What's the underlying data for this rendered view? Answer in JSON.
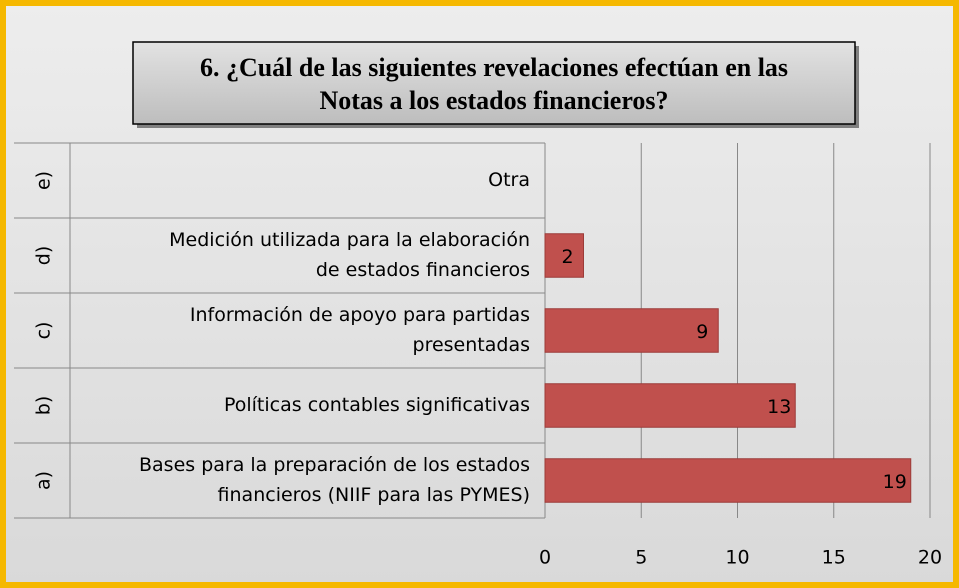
{
  "chart_data": {
    "type": "barh",
    "title": [
      "6. ¿Cuál de las siguientes revelaciones efectúan en las",
      "Notas a los estados financieros?"
    ],
    "group_labels": [
      "a)",
      "b)",
      "c)",
      "d)",
      "e)"
    ],
    "categories": [
      [
        "Bases para la preparación de los estados",
        "financieros (NIIF para las PYMES)"
      ],
      [
        "Políticas contables significativas"
      ],
      [
        "Información de apoyo para partidas",
        "presentadas"
      ],
      [
        "Medición utilizada para la elaboración",
        "de estados financieros"
      ],
      [
        "Otra"
      ]
    ],
    "values": [
      19,
      13,
      9,
      2,
      null
    ],
    "color": "#c0504d",
    "xlim": [
      0,
      20
    ],
    "xticks": [
      0,
      5,
      10,
      15,
      20
    ],
    "grid": true
  }
}
